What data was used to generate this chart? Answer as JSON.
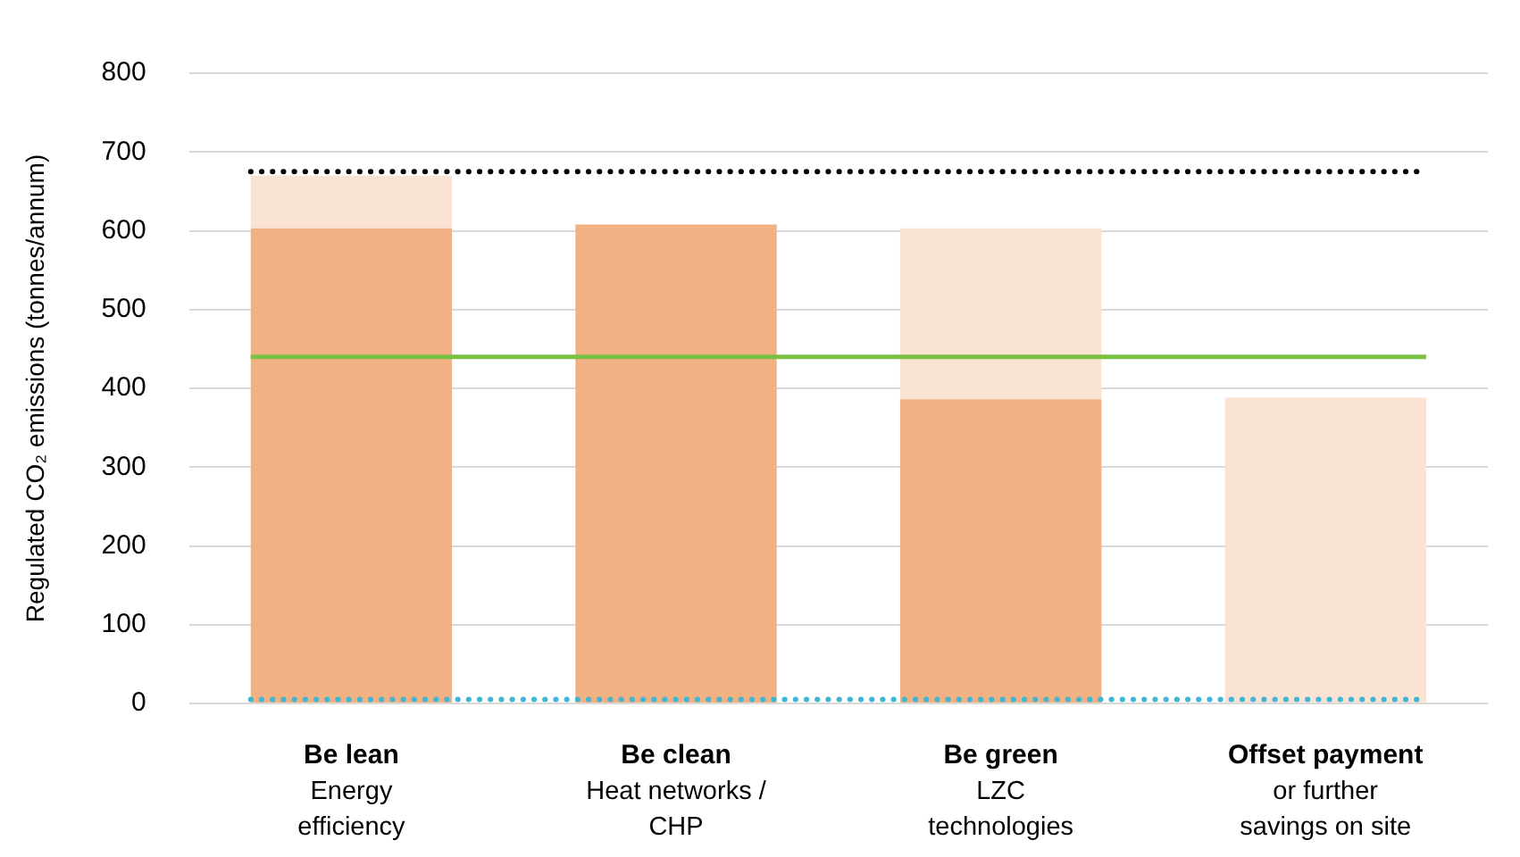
{
  "chart_data": {
    "type": "bar",
    "stacked": true,
    "ylabel": "Regulated CO₂ emissions (tonnes/annum)",
    "categories": [
      "Be lean\nEnergy\nefficiency",
      "Be clean\nHeat networks /\nCHP",
      "Be green\nLZC\ntechnologies",
      "Offset payment\nor further\nsavings on site"
    ],
    "series": [
      {
        "color": "#f2b183",
        "values": [
          603,
          608,
          386,
          null
        ]
      },
      {
        "color": "#fbe3d3",
        "values": [
          67,
          0,
          217,
          388
        ]
      }
    ],
    "ylim": [
      0,
      800
    ],
    "yticks": [
      0,
      100,
      200,
      300,
      400,
      500,
      600,
      700,
      800
    ],
    "grid": "y",
    "legend": false,
    "ref_lines": [
      {
        "axis": "y",
        "value": 675,
        "color": "#000000",
        "line_style": "dotted"
      },
      {
        "axis": "y",
        "value": 440,
        "color": "#7ac143",
        "line_style": "solid"
      },
      {
        "axis": "y",
        "value": 5,
        "color": "#3fb6d4",
        "line_style": "dotted"
      }
    ]
  }
}
